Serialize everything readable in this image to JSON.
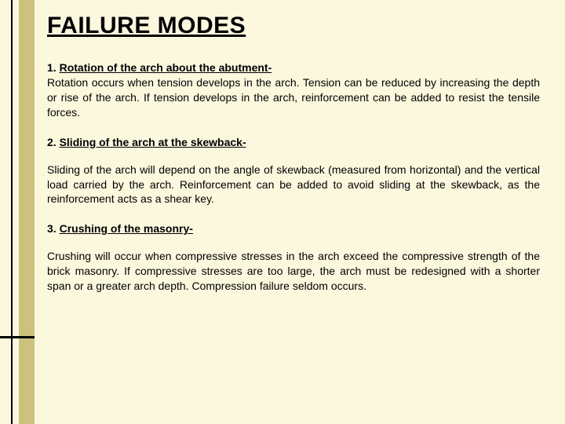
{
  "background_color": "#fbf8dd",
  "stripe_color": "#cac27d",
  "line_color": "#000000",
  "text_color": "#000000",
  "title": "FAILURE MODES",
  "title_fontsize": 30,
  "body_fontsize": 14,
  "modes": [
    {
      "num": "1. ",
      "heading": "Rotation of the arch about the abutment-",
      "body": "Rotation occurs when tension develops in the arch. Tension can be reduced by increasing the depth or rise of the arch. If tension develops in the arch, reinforcement can be added to resist the tensile forces.",
      "gap_before_body": false
    },
    {
      "num": "2. ",
      "heading": " Sliding of the arch at the skewback-",
      "body": "Sliding of the arch will depend on the angle of skewback (measured from horizontal) and the vertical load carried by the arch. Reinforcement can be added to avoid sliding at the skewback, as the reinforcement acts as a shear key.",
      "gap_before_body": true
    },
    {
      "num": "3. ",
      "heading": "Crushing of the masonry-",
      "body": "Crushing will occur when compressive stresses in the arch exceed the compressive strength of the brick masonry. If compressive stresses are too large, the arch must be redesigned with a shorter span or a greater arch depth. Compression failure seldom occurs.",
      "gap_before_body": true
    }
  ]
}
